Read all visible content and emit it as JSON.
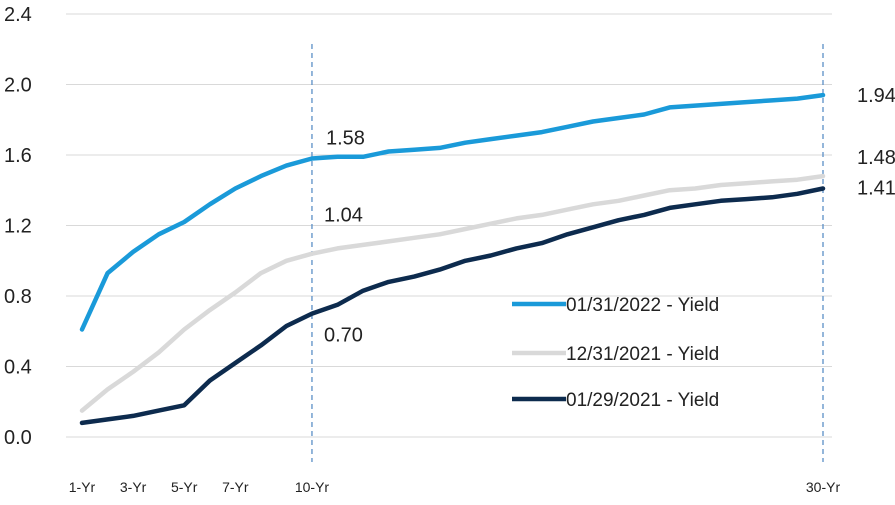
{
  "chart_data": {
    "type": "line",
    "title": "",
    "xlabel": "",
    "ylabel": "",
    "ylim": [
      0.0,
      2.4
    ],
    "yticks": [
      "0.0",
      "0.4",
      "0.8",
      "1.2",
      "1.6",
      "2.0",
      "2.4"
    ],
    "xlim": [
      1,
      30
    ],
    "xticks": [
      {
        "x": 1,
        "label": "1-Yr"
      },
      {
        "x": 3,
        "label": "3-Yr"
      },
      {
        "x": 5,
        "label": "5-Yr"
      },
      {
        "x": 7,
        "label": "7-Yr"
      },
      {
        "x": 10,
        "label": "10-Yr"
      },
      {
        "x": 30,
        "label": "30-Yr"
      }
    ],
    "reference_lines": [
      10,
      30
    ],
    "grid": "horizontal",
    "legend_position": "bottom-right",
    "series": [
      {
        "name": "01/31/2022 - Yield",
        "color": "#1a9ad9",
        "x": [
          1,
          2,
          3,
          4,
          5,
          6,
          7,
          8,
          9,
          10,
          11,
          12,
          13,
          14,
          15,
          16,
          17,
          18,
          19,
          20,
          21,
          22,
          23,
          24,
          25,
          26,
          27,
          28,
          29,
          30
        ],
        "values": [
          0.61,
          0.93,
          1.05,
          1.15,
          1.22,
          1.32,
          1.41,
          1.48,
          1.54,
          1.58,
          1.59,
          1.59,
          1.62,
          1.63,
          1.64,
          1.67,
          1.69,
          1.71,
          1.73,
          1.76,
          1.79,
          1.81,
          1.83,
          1.87,
          1.88,
          1.89,
          1.9,
          1.91,
          1.92,
          1.94
        ]
      },
      {
        "name": "12/31/2021 - Yield",
        "color": "#d9d9d9",
        "x": [
          1,
          2,
          3,
          4,
          5,
          6,
          7,
          8,
          9,
          10,
          11,
          12,
          13,
          14,
          15,
          16,
          17,
          18,
          19,
          20,
          21,
          22,
          23,
          24,
          25,
          26,
          27,
          28,
          29,
          30
        ],
        "values": [
          0.15,
          0.27,
          0.37,
          0.48,
          0.61,
          0.72,
          0.82,
          0.93,
          1.0,
          1.04,
          1.07,
          1.09,
          1.11,
          1.13,
          1.15,
          1.18,
          1.21,
          1.24,
          1.26,
          1.29,
          1.32,
          1.34,
          1.37,
          1.4,
          1.41,
          1.43,
          1.44,
          1.45,
          1.46,
          1.48
        ]
      },
      {
        "name": "01/29/2021 - Yield",
        "color": "#0d2b4e",
        "x": [
          1,
          2,
          3,
          4,
          5,
          6,
          7,
          8,
          9,
          10,
          11,
          12,
          13,
          14,
          15,
          16,
          17,
          18,
          19,
          20,
          21,
          22,
          23,
          24,
          25,
          26,
          27,
          28,
          29,
          30
        ],
        "values": [
          0.08,
          0.1,
          0.12,
          0.15,
          0.18,
          0.32,
          0.42,
          0.52,
          0.63,
          0.7,
          0.75,
          0.83,
          0.88,
          0.91,
          0.95,
          1.0,
          1.03,
          1.07,
          1.1,
          1.15,
          1.19,
          1.23,
          1.26,
          1.3,
          1.32,
          1.34,
          1.35,
          1.36,
          1.38,
          1.41
        ]
      }
    ],
    "annotations": [
      {
        "text": "1.58",
        "series": 0,
        "x": 10
      },
      {
        "text": "1.04",
        "series": 1,
        "x": 10
      },
      {
        "text": "0.70",
        "series": 2,
        "x": 10
      },
      {
        "text": "1.94",
        "series": 0,
        "x": 30
      },
      {
        "text": "1.48",
        "series": 1,
        "x": 30
      },
      {
        "text": "1.41",
        "series": 2,
        "x": 30
      }
    ]
  }
}
